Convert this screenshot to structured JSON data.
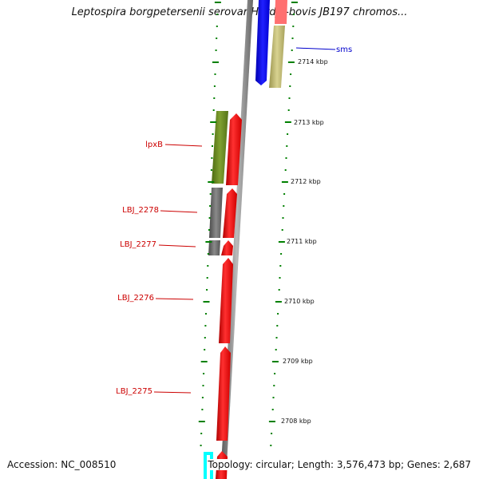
{
  "title": "Leptospira borgpetersenii serovar Hardjo-bovis JB197 chromos...",
  "accession": "Accession: NC_008510",
  "topology": "Topology: circular; Length: 3,576,473 bp; Genes: 2,687",
  "colors": {
    "gene_forward": "#ff0000",
    "gene_other_a": "#0000ff",
    "gene_other_b": "#bdb76b",
    "gene_olive": "#6b8e23",
    "gene_gray": "#6e6e6e",
    "gene_cyan": "#00ffff",
    "label_red": "#cc0000",
    "label_blue": "#0000cc",
    "tick_green": "#008000"
  },
  "kbp_labels": [
    "2714 kbp",
    "2713 kbp",
    "2712 kbp",
    "2711 kbp",
    "2710 kbp",
    "2709 kbp",
    "2708 kbp"
  ],
  "genes": [
    {
      "label": "sms",
      "color": "blue"
    },
    {
      "label": "lpxB",
      "color": "red"
    },
    {
      "label": "LBJ_2278",
      "color": "red"
    },
    {
      "label": "LBJ_2277",
      "color": "red"
    },
    {
      "label": "LBJ_2276",
      "color": "red"
    },
    {
      "label": "LBJ_2275",
      "color": "red"
    }
  ]
}
